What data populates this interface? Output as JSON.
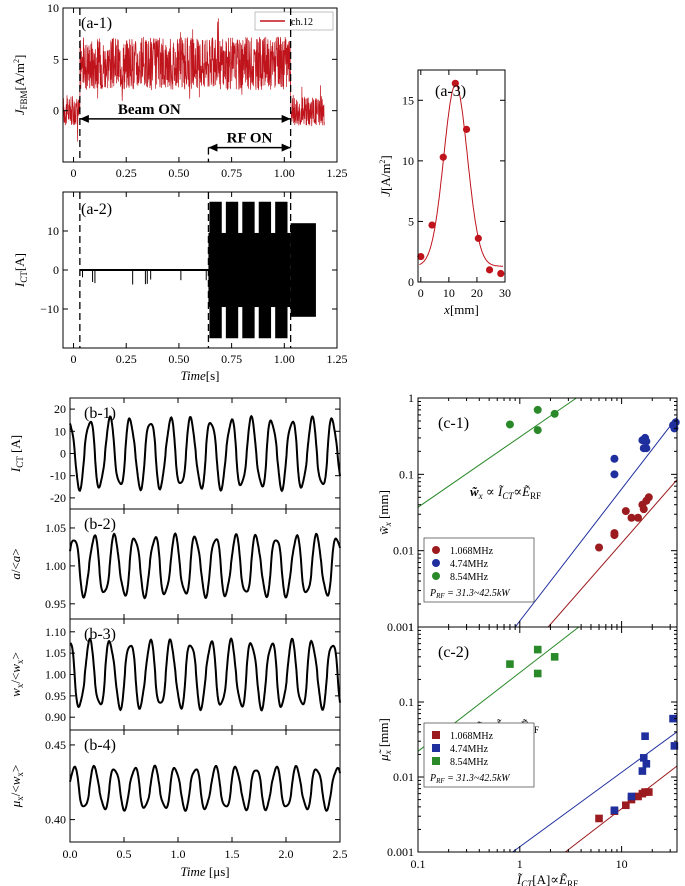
{
  "chart_data": [
    {
      "type": "line",
      "panel_label": "(a-1)",
      "ylabel": "J_FBM[A/m²]",
      "xlim": [
        -0.05,
        1.25
      ],
      "ylim": [
        -5,
        10
      ],
      "xticks": [
        0,
        0.25,
        0.5,
        0.75,
        1,
        1.25
      ],
      "xtick_labels": [
        "0",
        "0.25",
        "0.50",
        "0.75",
        "1.00",
        "1.25"
      ],
      "yticks": [
        -5,
        0,
        5,
        10
      ],
      "ytick_labels": [
        "",
        "0",
        "5",
        "10"
      ],
      "legend": {
        "position": "top-right",
        "entries": [
          "ch.12"
        ]
      },
      "series": [
        {
          "name": "ch.12",
          "color": "#c0141c"
        }
      ],
      "segments": [
        {
          "x_from": -0.05,
          "x_to": 0.03,
          "level": 0,
          "noise": 1.5
        },
        {
          "x_from": 0.03,
          "x_to": 1.03,
          "level": 4.6,
          "noise": 2.6
        },
        {
          "x_from": 1.03,
          "x_to": 1.19,
          "level": 0,
          "noise": 1.5
        }
      ],
      "annotations": [
        {
          "text": "Beam ON",
          "x_from": 0.03,
          "x_to": 1.03,
          "y": -0.8
        },
        {
          "text": "RF ON",
          "x_from": 0.64,
          "x_to": 1.03,
          "y": -3.6
        }
      ]
    },
    {
      "type": "line",
      "panel_label": "(a-2)",
      "ylabel": "I_CT[A]",
      "xlabel": "Time[s]",
      "xlim": [
        -0.05,
        1.25
      ],
      "ylim": [
        -20,
        20
      ],
      "xticks": [
        0,
        0.25,
        0.5,
        0.75,
        1,
        1.25
      ],
      "xtick_labels": [
        "0",
        "0.25",
        "0.50",
        "0.75",
        "1.00",
        "1.25"
      ],
      "yticks": [
        -10,
        0,
        10
      ],
      "ytick_labels": [
        "−10",
        "0",
        "10"
      ],
      "series": [
        {
          "name": "I_CT",
          "color": "#000000"
        }
      ],
      "segments": [
        {
          "x_from": 0.03,
          "x_to": 0.64,
          "amplitude": 0.4
        },
        {
          "x_from": 0.64,
          "x_to": 1.03,
          "amplitude": 9.5,
          "burst_amplitude": 17.5
        },
        {
          "x_from": 1.03,
          "x_to": 1.15,
          "amplitude": 12
        }
      ]
    },
    {
      "type": "scatter",
      "panel_label": "(a-3)",
      "ylabel": "J[A/m²]",
      "xlabel": "x[mm]",
      "xlim": [
        -1,
        30
      ],
      "ylim": [
        0,
        17.5
      ],
      "xticks": [
        0,
        10,
        20,
        30
      ],
      "yticks": [
        0,
        5,
        10,
        15
      ],
      "x": [
        0,
        4,
        8,
        12.3,
        16.3,
        20.5,
        24.5,
        28.5
      ],
      "y": [
        2.1,
        4.7,
        10.3,
        16.4,
        12.6,
        3.6,
        1.0,
        0.7
      ],
      "fit": {
        "type": "gaussian",
        "amplitude": 15.0,
        "center": 12.4,
        "sigma": 4.2,
        "offset": 1.3
      },
      "color": "#c0141c"
    },
    {
      "type": "line",
      "panel_label": "(b-1)",
      "ylabel": "I_CT [A]",
      "xlim": [
        0,
        2.5
      ],
      "ylim": [
        -25,
        25
      ],
      "yticks": [
        -20,
        -10,
        0,
        10,
        20
      ],
      "period_us": 0.1872,
      "amplitude": 15,
      "color": "#000000"
    },
    {
      "type": "line",
      "panel_label": "(b-2)",
      "ylabel": "a/<a>",
      "xlim": [
        0,
        2.5
      ],
      "ylim": [
        0.93,
        1.075
      ],
      "yticks": [
        0.95,
        1.0,
        1.05
      ],
      "ytick_labels": [
        "0.95",
        "1.00",
        "1.05"
      ],
      "period_us": 0.1872,
      "amplitude": 0.038,
      "color": "#000000"
    },
    {
      "type": "line",
      "panel_label": "(b-3)",
      "ylabel": "w_x/<w_x>",
      "xlim": [
        0,
        2.5
      ],
      "ylim": [
        0.87,
        1.13
      ],
      "yticks": [
        0.9,
        0.95,
        1.0,
        1.05,
        1.1
      ],
      "ytick_labels": [
        "0.90",
        "0.95",
        "1.00",
        "1.05",
        "1.10"
      ],
      "period_us": 0.1872,
      "amplitude": 0.075,
      "color": "#000000"
    },
    {
      "type": "line",
      "panel_label": "(b-4)",
      "ylabel": "μ_x/<w_x>",
      "xlabel": "Time [μs]",
      "xlim": [
        0,
        2.5
      ],
      "ylim": [
        0.385,
        0.46
      ],
      "yticks": [
        0.4,
        0.45
      ],
      "ytick_labels": [
        "0.40",
        "0.45"
      ],
      "xticks": [
        0,
        0.5,
        1,
        1.5,
        2,
        2.5
      ],
      "xtick_labels": [
        "0.0",
        "0.5",
        "1.0",
        "1.5",
        "2.0",
        "2.5"
      ],
      "period_us": 0.1872,
      "center": 0.421,
      "amplitude": 0.0135,
      "color": "#000000"
    },
    {
      "type": "scatter",
      "panel_label": "(c-1)",
      "ylabel": "w̃_x [mm]",
      "log_x": true,
      "log_y": true,
      "xlim": [
        0.1,
        35
      ],
      "ylim": [
        0.001,
        1
      ],
      "yticks": [
        0.001,
        0.01,
        0.1,
        1
      ],
      "ytick_labels": [
        "0.001",
        "0.01",
        "0.1",
        "1"
      ],
      "annotation": "w̃x ∝ ĨCT∝ẼRF",
      "legend_note": "P_RF = 31.3~42.5kW",
      "series": [
        {
          "name": "1.068MHz",
          "color": "#9b1b1f",
          "x": [
            6,
            8.5,
            8.5,
            11,
            12.5,
            14.5,
            16,
            16.5,
            17.5,
            18.5
          ],
          "y": [
            0.011,
            0.017,
            0.016,
            0.033,
            0.027,
            0.027,
            0.04,
            0.035,
            0.045,
            0.05
          ]
        },
        {
          "name": "4.74MHz",
          "color": "#1f2f9e",
          "x": [
            8.5,
            8.5,
            16,
            16.5,
            17,
            17.5,
            17.5,
            32,
            33,
            34
          ],
          "y": [
            0.16,
            0.1,
            0.28,
            0.22,
            0.3,
            0.27,
            0.22,
            0.44,
            0.4,
            0.48
          ]
        },
        {
          "name": "8.54MHz",
          "color": "#2a8a2a",
          "x": [
            0.8,
            1.5,
            1.5,
            2.2
          ],
          "y": [
            0.45,
            0.7,
            0.38,
            0.62
          ]
        }
      ],
      "fits": [
        {
          "color": "#9b1b1f",
          "x_from": 1.9,
          "x_to": 35,
          "y_at_x_from": 0.001,
          "y_at_x_to": 0.085
        },
        {
          "color": "#1f2f9e",
          "x_from": 0.9,
          "x_to": 35,
          "y_at_x_from": 0.001,
          "y_at_x_to": 0.56
        },
        {
          "color": "#2a8a2a",
          "x_from": 0.1,
          "x_to": 3.6,
          "y_at_x_from": 0.037,
          "y_at_x_to": 1.0
        }
      ]
    },
    {
      "type": "scatter",
      "panel_label": "(c-2)",
      "ylabel": "μ̃x [mm]",
      "xlabel": "ĨCT[A]∝ẼRF",
      "log_x": true,
      "log_y": true,
      "xlim": [
        0.1,
        35
      ],
      "ylim": [
        0.001,
        1
      ],
      "xticks": [
        0.1,
        1,
        10
      ],
      "xtick_labels": [
        "0.1",
        "1",
        "10"
      ],
      "yticks": [
        0.001,
        0.01,
        0.1,
        1
      ],
      "ytick_labels": [
        "0.001",
        "0.01",
        "0.1",
        "1"
      ],
      "annotation": "μ̃x ∝ ĨCT∝ẼRF",
      "legend_note": "P_RF = 31.3~42.5kW",
      "series": [
        {
          "name": "1.068MHz",
          "color": "#9b1b1f",
          "x": [
            6,
            8.5,
            11,
            12.5,
            14.5,
            16,
            17,
            18.5
          ],
          "y": [
            0.0028,
            0.0035,
            0.0042,
            0.005,
            0.0055,
            0.006,
            0.0063,
            0.0063
          ]
        },
        {
          "name": "4.74MHz",
          "color": "#1f2f9e",
          "x": [
            8.5,
            12.5,
            16,
            16.5,
            17,
            17.5,
            32,
            33
          ],
          "y": [
            0.0036,
            0.0055,
            0.012,
            0.018,
            0.035,
            0.015,
            0.06,
            0.026
          ]
        },
        {
          "name": "8.54MHz",
          "color": "#2a8a2a",
          "x": [
            0.8,
            1.5,
            1.5,
            2.2
          ],
          "y": [
            0.32,
            0.5,
            0.24,
            0.4
          ]
        }
      ],
      "fits": [
        {
          "color": "#9b1b1f",
          "x_from": 2.8,
          "x_to": 35,
          "y_at_x_from": 0.001,
          "y_at_x_to": 0.014
        },
        {
          "color": "#1f2f9e",
          "x_from": 0.85,
          "x_to": 35,
          "y_at_x_from": 0.001,
          "y_at_x_to": 0.04
        },
        {
          "color": "#2a8a2a",
          "x_from": 0.1,
          "x_to": 3.8,
          "y_at_x_from": 0.022,
          "y_at_x_to": 1.0
        }
      ]
    }
  ]
}
